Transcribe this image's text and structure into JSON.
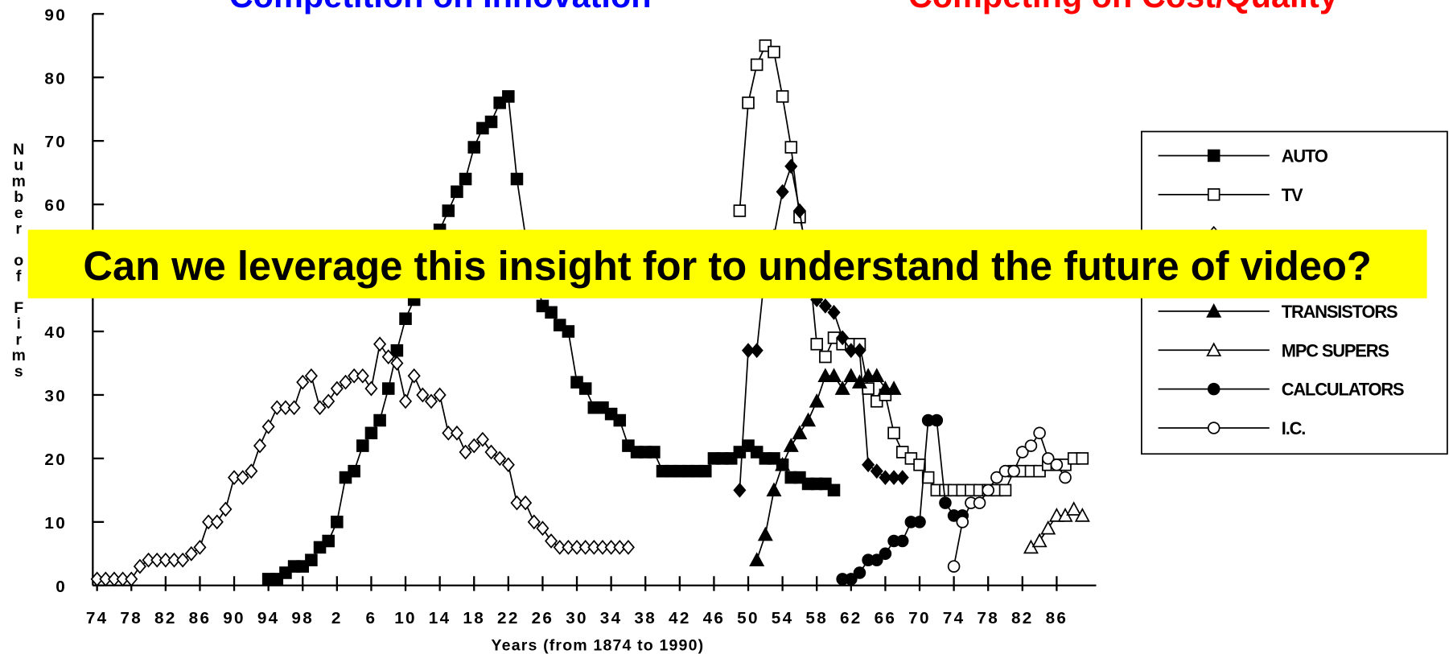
{
  "chart_data": {
    "type": "line",
    "title": "Competition on Innovation",
    "subtitle": "Competing on Cost/Quality",
    "annotation": "Can we leverage this insight for to understand the future of video?",
    "y_label": "Number of Firms",
    "x_label": "Years (from 1874 to 1990)",
    "xlim": [
      1873.5,
      1990.5
    ],
    "ylim": [
      0,
      90
    ],
    "yticks": [
      0,
      10,
      20,
      30,
      40,
      50,
      60,
      70,
      80,
      90
    ],
    "xticks": [
      {
        "value": 1874,
        "label": "74"
      },
      {
        "value": 1878,
        "label": "78"
      },
      {
        "value": 1882,
        "label": "82"
      },
      {
        "value": 1886,
        "label": "86"
      },
      {
        "value": 1890,
        "label": "90"
      },
      {
        "value": 1894,
        "label": "94"
      },
      {
        "value": 1898,
        "label": "98"
      },
      {
        "value": 1902,
        "label": "2"
      },
      {
        "value": 1906,
        "label": "6"
      },
      {
        "value": 1910,
        "label": "10"
      },
      {
        "value": 1914,
        "label": "14"
      },
      {
        "value": 1918,
        "label": "18"
      },
      {
        "value": 1922,
        "label": "22"
      },
      {
        "value": 1926,
        "label": "26"
      },
      {
        "value": 1930,
        "label": "30"
      },
      {
        "value": 1934,
        "label": "34"
      },
      {
        "value": 1938,
        "label": "38"
      },
      {
        "value": 1942,
        "label": "42"
      },
      {
        "value": 1946,
        "label": "46"
      },
      {
        "value": 1950,
        "label": "50"
      },
      {
        "value": 1954,
        "label": "54"
      },
      {
        "value": 1958,
        "label": "58"
      },
      {
        "value": 1962,
        "label": "62"
      },
      {
        "value": 1966,
        "label": "66"
      },
      {
        "value": 1970,
        "label": "70"
      },
      {
        "value": 1974,
        "label": "74"
      },
      {
        "value": 1978,
        "label": "78"
      },
      {
        "value": 1982,
        "label": "82"
      },
      {
        "value": 1986,
        "label": "86"
      }
    ],
    "legend": "right",
    "series": [
      {
        "name": "AUTO",
        "color": "#000000",
        "marker": "square",
        "filled": true,
        "x": [
          1894,
          1895,
          1896,
          1897,
          1898,
          1899,
          1900,
          1901,
          1902,
          1903,
          1904,
          1905,
          1906,
          1907,
          1908,
          1909,
          1910,
          1911,
          1912,
          1913,
          1914,
          1915,
          1916,
          1917,
          1918,
          1919,
          1920,
          1921,
          1922,
          1923,
          1924,
          1925,
          1926,
          1927,
          1928,
          1929,
          1930,
          1931,
          1932,
          1933,
          1934,
          1935,
          1936,
          1937,
          1938,
          1939,
          1940,
          1941,
          1942,
          1943,
          1944,
          1945,
          1946,
          1947,
          1948,
          1949,
          1950,
          1951,
          1952,
          1953,
          1954,
          1955,
          1956,
          1957,
          1958,
          1959,
          1960
        ],
        "values": [
          1,
          1,
          2,
          3,
          3,
          4,
          6,
          7,
          10,
          17,
          18,
          22,
          24,
          26,
          31,
          37,
          42,
          45,
          49,
          53,
          56,
          59,
          62,
          64,
          69,
          72,
          73,
          76,
          77,
          64,
          55,
          50,
          44,
          43,
          41,
          40,
          32,
          31,
          28,
          28,
          27,
          26,
          22,
          21,
          21,
          21,
          18,
          18,
          18,
          18,
          18,
          18,
          20,
          20,
          20,
          21,
          22,
          21,
          20,
          20,
          19,
          17,
          17,
          16,
          16,
          16,
          15
        ]
      },
      {
        "name": "TV",
        "color": "#000000",
        "marker": "square",
        "filled": false,
        "x": [
          1949,
          1950,
          1951,
          1952,
          1953,
          1954,
          1955,
          1956,
          1957,
          1958,
          1959,
          1960,
          1961,
          1962,
          1963,
          1964,
          1965,
          1966,
          1967,
          1968,
          1969,
          1970,
          1971,
          1972,
          1973,
          1974,
          1975,
          1976,
          1977,
          1978,
          1979,
          1980,
          1981,
          1982,
          1983,
          1984,
          1985,
          1986,
          1987,
          1988,
          1989
        ],
        "values": [
          59,
          76,
          82,
          85,
          84,
          77,
          69,
          58,
          52,
          38,
          36,
          39,
          38,
          38,
          38,
          31,
          29,
          30,
          24,
          21,
          20,
          19,
          17,
          15,
          15,
          15,
          15,
          15,
          15,
          15,
          15,
          15,
          18,
          18,
          18,
          18,
          19,
          19,
          19,
          20,
          20
        ]
      },
      {
        "color": "#000000",
        "marker": "diamond",
        "filled": false,
        "x": [
          1874,
          1875,
          1876,
          1877,
          1878,
          1879,
          1880,
          1881,
          1882,
          1883,
          1884,
          1885,
          1886,
          1887,
          1888,
          1889,
          1890,
          1891,
          1892,
          1893,
          1894,
          1895,
          1896,
          1897,
          1898,
          1899,
          1900,
          1901,
          1902,
          1903,
          1904,
          1905,
          1906,
          1907,
          1908,
          1909,
          1910,
          1911,
          1912,
          1913,
          1914,
          1915,
          1916,
          1917,
          1918,
          1919,
          1920,
          1921,
          1922,
          1923,
          1924,
          1925,
          1926,
          1927,
          1928,
          1929,
          1930,
          1931,
          1932,
          1933,
          1934,
          1935,
          1936
        ],
        "values": [
          1,
          1,
          1,
          1,
          1,
          3,
          4,
          4,
          4,
          4,
          4,
          5,
          6,
          10,
          10,
          12,
          17,
          17,
          18,
          22,
          25,
          28,
          28,
          28,
          32,
          33,
          28,
          29,
          31,
          32,
          33,
          33,
          31,
          38,
          36,
          35,
          29,
          33,
          30,
          29,
          30,
          24,
          24,
          21,
          22,
          23,
          21,
          20,
          19,
          13,
          13,
          10,
          9,
          7,
          6,
          6,
          6,
          6,
          6,
          6,
          6,
          6,
          6
        ]
      },
      {
        "color": "#000000",
        "marker": "diamond",
        "filled": true,
        "x": [
          1949,
          1950,
          1951,
          1952,
          1953,
          1954,
          1955,
          1956,
          1957,
          1958,
          1959,
          1960,
          1961,
          1962,
          1963,
          1964,
          1965,
          1966,
          1967,
          1968
        ],
        "values": [
          15,
          37,
          37,
          50,
          55,
          62,
          66,
          59,
          50,
          45,
          44,
          43,
          39,
          37,
          37,
          19,
          18,
          17,
          17,
          17
        ]
      },
      {
        "name": "TRANSISTORS",
        "color": "#000000",
        "marker": "triangle",
        "filled": true,
        "x": [
          1951,
          1952,
          1953,
          1954,
          1955,
          1956,
          1957,
          1958,
          1959,
          1960,
          1961,
          1962,
          1963,
          1964,
          1965,
          1966,
          1967
        ],
        "values": [
          4,
          8,
          15,
          19,
          22,
          24,
          26,
          29,
          33,
          33,
          31,
          33,
          32,
          33,
          33,
          31,
          31
        ]
      },
      {
        "name": "MPC SUPERS",
        "color": "#000000",
        "marker": "triangle",
        "filled": false,
        "x": [
          1983,
          1984,
          1985,
          1986,
          1987,
          1988,
          1989
        ],
        "values": [
          6,
          7,
          9,
          11,
          11,
          12,
          11
        ]
      },
      {
        "name": "CALCULATORS",
        "color": "#000000",
        "marker": "circle",
        "filled": true,
        "x": [
          1961,
          1962,
          1963,
          1964,
          1965,
          1966,
          1967,
          1968,
          1969,
          1970,
          1971,
          1972,
          1973,
          1974,
          1975
        ],
        "values": [
          1,
          1,
          2,
          4,
          4,
          5,
          7,
          7,
          10,
          10,
          26,
          26,
          13,
          11,
          11
        ]
      },
      {
        "name": "I.C.",
        "color": "#000000",
        "marker": "circle",
        "filled": false,
        "x": [
          1974,
          1975,
          1976,
          1977,
          1978,
          1979,
          1980,
          1981,
          1982,
          1983,
          1984,
          1985,
          1986,
          1987
        ],
        "values": [
          3,
          10,
          13,
          13,
          15,
          17,
          18,
          18,
          21,
          22,
          24,
          20,
          19,
          17
        ]
      }
    ]
  }
}
